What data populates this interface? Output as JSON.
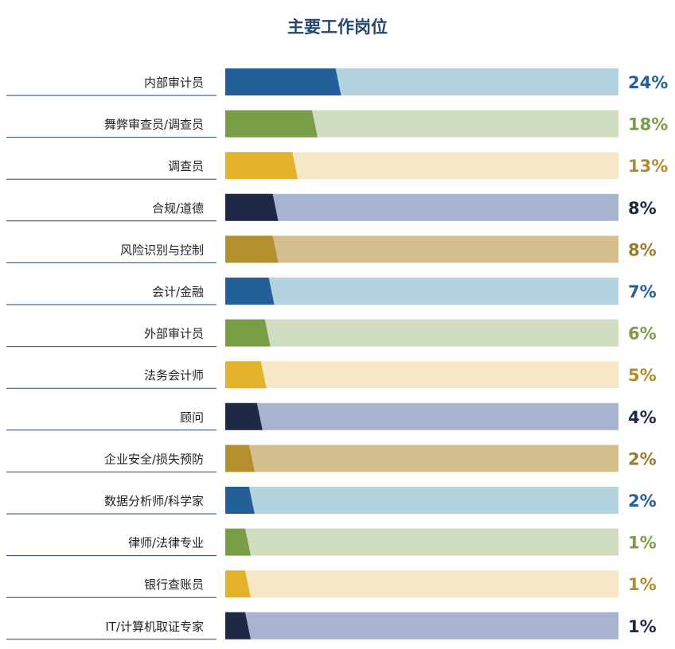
{
  "chart_data": {
    "type": "bar",
    "title": "主要工作岗位",
    "xlabel": "",
    "ylabel": "",
    "xlim": [
      0,
      100
    ],
    "grid": false,
    "legend": "none",
    "categories": [
      "内部审计员",
      "舞弊审查员/调查员",
      "调查员",
      "合规/道德",
      "风险识别与控制",
      "会计/金融",
      "外部审计员",
      "法务会计师",
      "顾问",
      "企业安全/损失预防",
      "数据分析师/科学家",
      "律师/法律专业",
      "银行查账员",
      "IT/计算机取证专家"
    ],
    "values": [
      24,
      18,
      13,
      8,
      8,
      7,
      6,
      5,
      4,
      2,
      2,
      1,
      1,
      1
    ],
    "data_labels": [
      "24%",
      "18%",
      "13%",
      "8%",
      "8%",
      "7%",
      "6%",
      "5%",
      "4%",
      "2%",
      "2%",
      "1%",
      "1%",
      "1%"
    ],
    "bar_colors": [
      "#23609a",
      "#799d47",
      "#e3b42b",
      "#1f2946",
      "#b38f2d",
      "#23609a",
      "#799d47",
      "#e3b42b",
      "#1f2946",
      "#b38f2d",
      "#23609a",
      "#799d47",
      "#e3b42b",
      "#1f2946"
    ],
    "track_colors": [
      "#b5d2df",
      "#d0dcbf",
      "#f6e7c6",
      "#a8b4cf",
      "#d4be8b",
      "#b5d2df",
      "#d0dcbf",
      "#f6e7c6",
      "#a8b4cf",
      "#d4be8b",
      "#b5d2df",
      "#d0dcbf",
      "#f6e7c6",
      "#a8b4cf"
    ],
    "label_colors": [
      "#23609a",
      "#799d47",
      "#b08c2e",
      "#1f2946",
      "#9b7a2c",
      "#23609a",
      "#799d47",
      "#b08c2e",
      "#1f2946",
      "#9b7a2c",
      "#23609a",
      "#799d47",
      "#b08c2e",
      "#1f2946"
    ],
    "divider_color": "#23466f"
  }
}
